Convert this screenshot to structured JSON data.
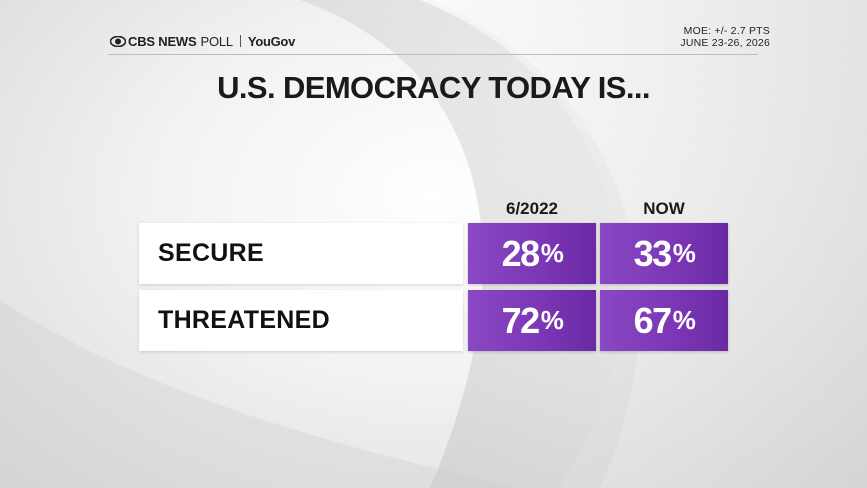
{
  "brand": {
    "network": "CBS NEWS",
    "poll": "POLL",
    "partner": "YouGov"
  },
  "meta": {
    "moe": "MOE: +/- 2.7 PTS",
    "dates": "JUNE 23-26, 2026"
  },
  "chart_data": {
    "type": "table",
    "title": "U.S. DEMOCRACY TODAY IS...",
    "columns": [
      "6/2022",
      "NOW"
    ],
    "rows": [
      {
        "label": "SECURE",
        "values": [
          28,
          33
        ]
      },
      {
        "label": "THREATENED",
        "values": [
          72,
          67
        ]
      }
    ],
    "unit": "%"
  },
  "colors": {
    "accent": "#7a36b5",
    "label_bg": "#ffffff",
    "text": "#1a1a1a"
  },
  "icons": {
    "brand_logo": "cbs-eye-icon"
  }
}
